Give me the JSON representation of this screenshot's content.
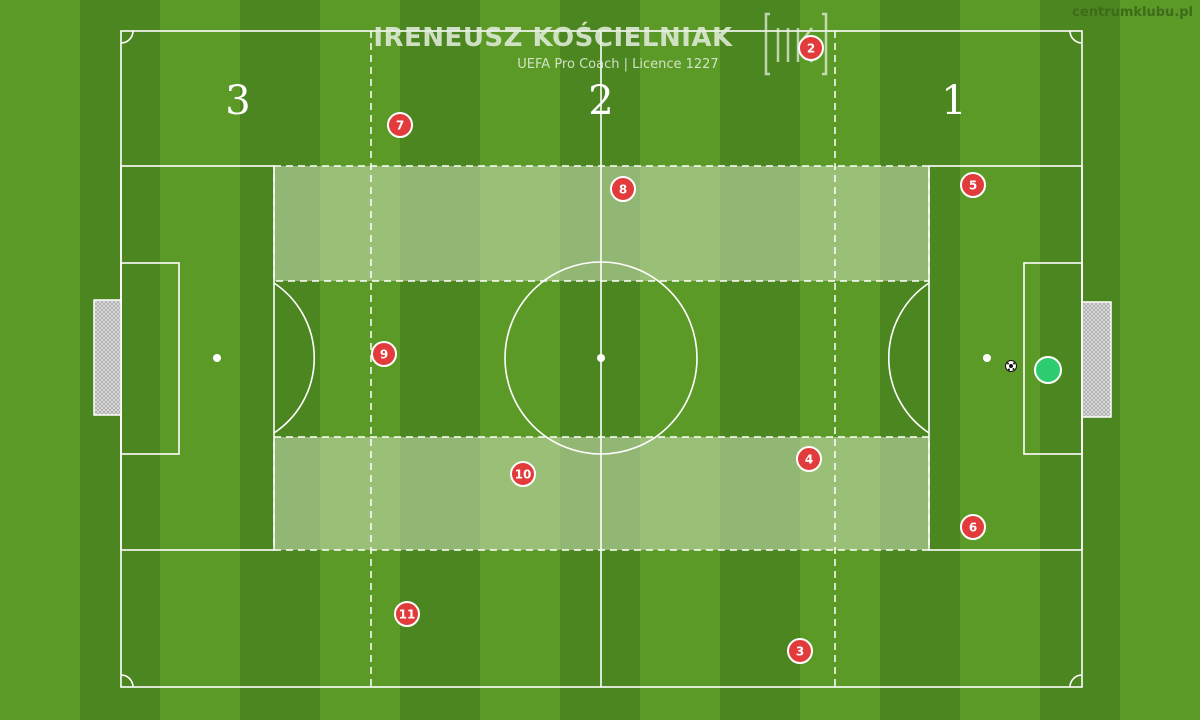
{
  "watermark": "centrumklubu.pl",
  "brand": {
    "name": "IRENEUSZ KOŚCIELNIAK",
    "subtitle": "UEFA Pro Coach   |   Licence 1227",
    "logo": "IK-monogram-logo"
  },
  "zones": [
    "3",
    "2",
    "1"
  ],
  "colors": {
    "grass_light": "#5c9a28",
    "grass_dark": "#4c8620",
    "player": "#e23b3b",
    "goalkeeper": "#2ecc71",
    "line": "#ffffff"
  },
  "players": [
    "2",
    "7",
    "8",
    "5",
    "9",
    "4",
    "10",
    "6",
    "11",
    "3"
  ],
  "goalkeeper": "goalkeeper-marker",
  "ball": "ball-icon"
}
